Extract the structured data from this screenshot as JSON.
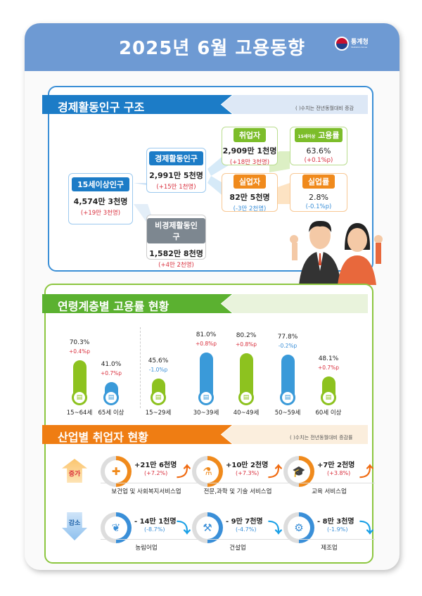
{
  "header": {
    "title": "2025년 6월 고용동향",
    "logo_name": "통계청",
    "logo_sub": "Statistics Korea"
  },
  "structure": {
    "title": "경제활동인구 구조",
    "note": "( )수치는 전년동월대비 증감",
    "pop15": {
      "label": "15세이상인구",
      "value": "4,574만 3천명",
      "change": "(+19만 3천명)"
    },
    "active": {
      "label": "경제활동인구",
      "value": "2,991만 5천명",
      "change": "(+15만 1천명)"
    },
    "inactive": {
      "label": "비경제활동인구",
      "value": "1,582만 8천명",
      "change": "(+4만 2천명)"
    },
    "employed": {
      "label": "취업자",
      "value": "2,909만 1천명",
      "change": "(+18만 3천명)"
    },
    "unemployed": {
      "label": "실업자",
      "value": "82만 5천명",
      "change": "(-3만 2천명)"
    },
    "emp_rate": {
      "label_small": "15세이상",
      "label": "고용률",
      "value": "63.6%",
      "change": "(+0.1%p)"
    },
    "unemp_rate": {
      "label": "실업률",
      "value": "2.8%",
      "change": "(-0.1%p)"
    }
  },
  "age": {
    "title": "연령계층별 고용률 현황"
  },
  "chart_data": {
    "type": "bar",
    "title": "연령계층별 고용률 현황",
    "categories": [
      "15~64세",
      "65세 이상",
      "15~29세",
      "30~39세",
      "40~49세",
      "50~59세",
      "60세 이상"
    ],
    "values": [
      70.3,
      41.0,
      45.6,
      81.0,
      80.2,
      77.8,
      48.1
    ],
    "value_labels": [
      "70.3%",
      "41.0%",
      "45.6%",
      "81.0%",
      "80.2%",
      "77.8%",
      "48.1%"
    ],
    "changes": [
      "+0.4%p",
      "+0.7%p",
      "-1.0%p",
      "+0.8%p",
      "+0.8%p",
      "-0.2%p",
      "+0.7%p"
    ],
    "colors": [
      "#8dc21f",
      "#3a9ad9",
      "#8dc21f",
      "#3a9ad9",
      "#8dc21f",
      "#3a9ad9",
      "#8dc21f"
    ]
  },
  "industry": {
    "title": "산업별 취업자 현황",
    "note": "( )수치는 전년동월대비 증감률",
    "increase_label": "증가",
    "decrease_label": "감소",
    "increase": [
      {
        "name": "보건업 및 사회복지서비스업",
        "value": "+21만 6천명",
        "change": "(+7.2%)",
        "icon": "first-aid-kit-icon",
        "glyph": "✚"
      },
      {
        "name": "전문,과학 및 기술 서비스업",
        "value": "+10만 2천명",
        "change": "(+7.3%)",
        "icon": "lab-flask-icon",
        "glyph": "⚗"
      },
      {
        "name": "교육 서비스업",
        "value": "+7만 2천명",
        "change": "(+3.8%)",
        "icon": "graduation-cap-icon",
        "glyph": "🎓"
      }
    ],
    "decrease": [
      {
        "name": "농림어업",
        "value": "- 14만 1천명",
        "change": "(-8.7%)",
        "icon": "wheat-icon",
        "glyph": "❦"
      },
      {
        "name": "건설업",
        "value": "- 9만 7천명",
        "change": "(-4.7%)",
        "icon": "excavator-icon",
        "glyph": "⚒"
      },
      {
        "name": "제조업",
        "value": "- 8만 3천명",
        "change": "(-1.9%)",
        "icon": "gear-icon",
        "glyph": "⚙"
      }
    ]
  },
  "colors": {
    "blue": "#3b8fd6",
    "green": "#8cc63f",
    "orange": "#f08a1c",
    "red": "#d9303e"
  }
}
